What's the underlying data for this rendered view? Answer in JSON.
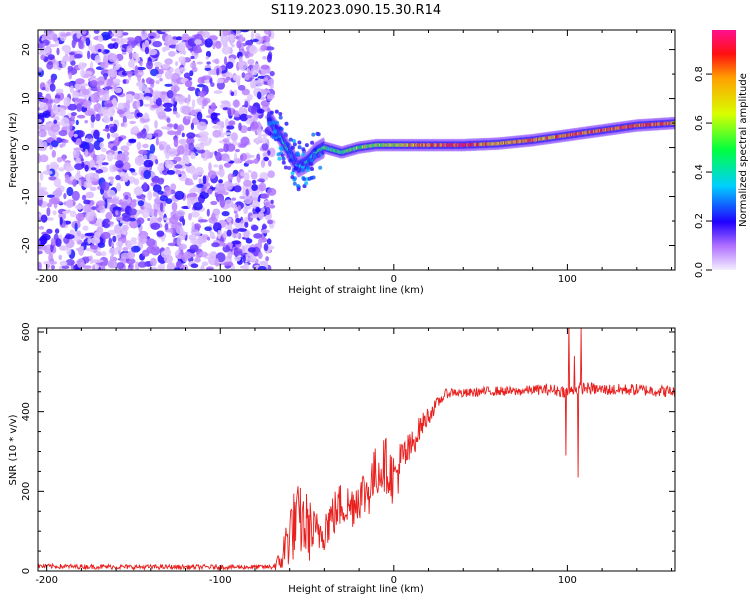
{
  "figure": {
    "title": "S119.2023.090.15.30.R14"
  },
  "colors": {
    "snr_line": "#e8201e",
    "colormap": [
      "#f0e8ff",
      "#8a3cf0",
      "#0010ff",
      "#00e8ff",
      "#00ff20",
      "#ffff00",
      "#ff2a00",
      "#ff1080"
    ]
  },
  "chart_data": [
    {
      "id": "spectrogram",
      "type": "heatmap",
      "xlabel": "Height of straight line (km)",
      "ylabel": "Frequency (Hz)",
      "xlim": [
        -205,
        162
      ],
      "ylim": [
        -25,
        24
      ],
      "xticks": [
        -200,
        -100,
        0,
        100
      ],
      "yticks": [
        -20,
        -10,
        0,
        10,
        20
      ],
      "colorbar": {
        "label": "Normalized spectral amplitude",
        "range": [
          0,
          0.98
        ],
        "ticks": [
          "0.0",
          "0.2",
          "0.4",
          "0.6",
          "0.8"
        ]
      },
      "noise_region_x": [
        -205,
        -70
      ],
      "ridge": {
        "x": [
          -72,
          -65,
          -60,
          -55,
          -50,
          -45,
          -40,
          -30,
          -20,
          -10,
          0,
          20,
          40,
          60,
          80,
          100,
          120,
          140,
          162
        ],
        "freq": [
          6,
          2,
          -1,
          -4,
          -3,
          -1,
          0,
          -1,
          0,
          0.5,
          0.5,
          0.5,
          0.5,
          0.8,
          1.5,
          2.5,
          3.5,
          4.5,
          5
        ],
        "amplitude": [
          0.25,
          0.3,
          0.35,
          0.3,
          0.35,
          0.4,
          0.45,
          0.5,
          0.55,
          0.6,
          0.65,
          0.85,
          0.9,
          0.75,
          0.8,
          0.8,
          0.85,
          0.85,
          0.8
        ]
      }
    },
    {
      "id": "snr",
      "type": "line",
      "xlabel": "Height of straight line (km)",
      "ylabel": "SNR (10 * v/v)",
      "xlim": [
        -205,
        162
      ],
      "ylim": [
        0,
        610
      ],
      "xticks": [
        -200,
        -100,
        0,
        100
      ],
      "yticks": [
        0,
        200,
        400,
        600
      ],
      "series": [
        {
          "x": [
            -205,
            -150,
            -100,
            -70,
            -65,
            -60,
            -55,
            -50,
            -45,
            -40,
            -35,
            -30,
            -25,
            -20,
            -15,
            -10,
            -5,
            0,
            5,
            10,
            15,
            20,
            25,
            30,
            35,
            40,
            50,
            60,
            70,
            80,
            90,
            100,
            110,
            120,
            140,
            162
          ],
          "y": [
            12,
            10,
            10,
            10,
            25,
            100,
            130,
            110,
            90,
            110,
            140,
            170,
            160,
            190,
            200,
            250,
            270,
            230,
            280,
            310,
            360,
            390,
            420,
            445,
            450,
            445,
            450,
            452,
            450,
            455,
            455,
            450,
            460,
            455,
            455,
            450
          ],
          "noise": [
            6,
            6,
            6,
            6,
            30,
            90,
            90,
            90,
            60,
            60,
            60,
            60,
            60,
            60,
            70,
            70,
            70,
            70,
            60,
            40,
            30,
            25,
            15,
            12,
            12,
            12,
            12,
            12,
            12,
            12,
            15,
            15,
            15,
            15,
            15,
            15
          ]
        }
      ],
      "spikes": [
        {
          "x": 99,
          "y": 290
        },
        {
          "x": 101,
          "y": 630
        },
        {
          "x": 104,
          "y": 540
        },
        {
          "x": 106,
          "y": 235
        },
        {
          "x": 108,
          "y": 610
        }
      ]
    }
  ]
}
